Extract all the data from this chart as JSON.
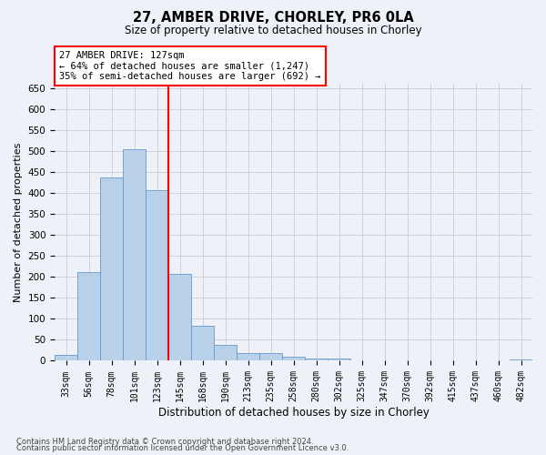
{
  "title1": "27, AMBER DRIVE, CHORLEY, PR6 0LA",
  "title2": "Size of property relative to detached houses in Chorley",
  "xlabel": "Distribution of detached houses by size in Chorley",
  "ylabel": "Number of detached properties",
  "categories": [
    "33sqm",
    "56sqm",
    "78sqm",
    "101sqm",
    "123sqm",
    "145sqm",
    "168sqm",
    "190sqm",
    "213sqm",
    "235sqm",
    "258sqm",
    "280sqm",
    "302sqm",
    "325sqm",
    "347sqm",
    "370sqm",
    "392sqm",
    "415sqm",
    "437sqm",
    "460sqm",
    "482sqm"
  ],
  "values": [
    15,
    212,
    436,
    503,
    407,
    207,
    84,
    38,
    18,
    18,
    10,
    5,
    5,
    1,
    1,
    1,
    0,
    0,
    0,
    0,
    4
  ],
  "bar_color": "#b8d0e8",
  "bar_edge_color": "#6699cc",
  "grid_color": "#cccccc",
  "annotation_text": "27 AMBER DRIVE: 127sqm\n← 64% of detached houses are smaller (1,247)\n35% of semi-detached houses are larger (692) →",
  "annotation_box_color": "white",
  "annotation_box_edge_color": "red",
  "vline_color": "red",
  "vline_index": 4,
  "ylim": [
    0,
    660
  ],
  "yticks": [
    0,
    50,
    100,
    150,
    200,
    250,
    300,
    350,
    400,
    450,
    500,
    550,
    600,
    650
  ],
  "footer1": "Contains HM Land Registry data © Crown copyright and database right 2024.",
  "footer2": "Contains public sector information licensed under the Open Government Licence v3.0.",
  "bg_color": "#eef2f8"
}
